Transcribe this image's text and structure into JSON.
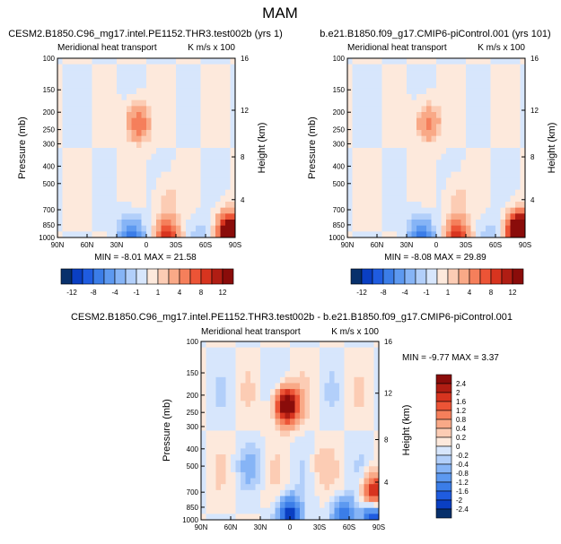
{
  "page_title": "MAM",
  "colors": {
    "negative": [
      "#08306b",
      "#0a3fc2",
      "#1f5ce0",
      "#3b7de8",
      "#5d99f0",
      "#86b4f6",
      "#b2cffa",
      "#d7e6fc"
    ],
    "positive": [
      "#fde9dc",
      "#fcccb4",
      "#f9a987",
      "#f57f5b",
      "#ec5436",
      "#d7341f",
      "#b01d13",
      "#8a0c0a"
    ],
    "neutral": "#ffffff"
  },
  "chart_data": [
    {
      "type": "heatmap",
      "title": "CESM2.B1850.C96_mg17.intel.PE1152.THR3.test002b (yrs 1)",
      "left_string": "Meridional heat transport",
      "right_string": "K m/s x 100",
      "ylabel": "Pressure (mb)",
      "y2label": "Height (km)",
      "xticks": [
        "90N",
        "60N",
        "30N",
        "0",
        "30S",
        "60S",
        "90S"
      ],
      "xlim": [
        90,
        -90
      ],
      "yticks": [
        100,
        150,
        200,
        250,
        300,
        400,
        500,
        700,
        850,
        1000
      ],
      "ylim": [
        100,
        1000
      ],
      "y_scale": "log",
      "y2ticks": [
        "16",
        "12",
        "8",
        "4"
      ],
      "min_max": "MIN = -8.01   MAX = 21.58",
      "features": [
        {
          "lat": 15,
          "p": 1000,
          "v": -8
        },
        {
          "lat": -22,
          "p": 1000,
          "v": 10
        },
        {
          "lat": 8,
          "p": 230,
          "v": 6
        },
        {
          "lat": -22,
          "p": 600,
          "v": 1.5
        },
        {
          "lat": -55,
          "p": 1000,
          "v": -2
        },
        {
          "lat": -85,
          "p": 950,
          "v": 21
        }
      ]
    },
    {
      "type": "heatmap",
      "title": "b.e21.B1850.f09_g17.CMIP6-piControl.001 (yrs 101)",
      "left_string": "Meridional heat transport",
      "right_string": "K m/s x 100",
      "ylabel": "Pressure (mb)",
      "y2label": "Height (km)",
      "xticks": [
        "90N",
        "60N",
        "30N",
        "0",
        "30S",
        "60S",
        "90S"
      ],
      "xlim": [
        90,
        -90
      ],
      "yticks": [
        100,
        150,
        200,
        250,
        300,
        400,
        500,
        700,
        850,
        1000
      ],
      "ylim": [
        100,
        1000
      ],
      "y_scale": "log",
      "y2ticks": [
        "16",
        "12",
        "8",
        "4"
      ],
      "min_max": "MIN = -8.08   MAX = 29.89",
      "features": [
        {
          "lat": 15,
          "p": 1000,
          "v": -8
        },
        {
          "lat": -22,
          "p": 1000,
          "v": 10
        },
        {
          "lat": 8,
          "p": 230,
          "v": 5
        },
        {
          "lat": -22,
          "p": 600,
          "v": 1.5
        },
        {
          "lat": -55,
          "p": 1000,
          "v": -2
        },
        {
          "lat": -85,
          "p": 950,
          "v": 29
        }
      ]
    },
    {
      "type": "heatmap",
      "title": "CESM2.B1850.C96_mg17.intel.PE1152.THR3.test002b - b.e21.B1850.f09_g17.CMIP6-piControl.001",
      "left_string": "Meridional heat transport",
      "right_string": "K m/s x 100",
      "ylabel": "Pressure (mb)",
      "y2label": "Height (km)",
      "xticks": [
        "90N",
        "60N",
        "30N",
        "0",
        "30S",
        "60S",
        "90S"
      ],
      "xlim": [
        90,
        -90
      ],
      "yticks": [
        100,
        150,
        200,
        250,
        300,
        400,
        500,
        700,
        850,
        1000
      ],
      "ylim": [
        100,
        1000
      ],
      "y_scale": "log",
      "y2ticks": [
        "16",
        "12",
        "8",
        "4"
      ],
      "min_max": "MIN = -9.77   MAX =  3.37",
      "features": [
        {
          "lat": 3,
          "p": 230,
          "v": 3.3
        },
        {
          "lat": 0,
          "p": 950,
          "v": -2.4
        },
        {
          "lat": -55,
          "p": 950,
          "v": -1.6
        },
        {
          "lat": -85,
          "p": 700,
          "v": 2.0
        },
        {
          "lat": -85,
          "p": 1000,
          "v": -2.4
        },
        {
          "lat": 40,
          "p": 500,
          "v": -0.4
        },
        {
          "lat": -30,
          "p": 500,
          "v": 0.3
        }
      ]
    }
  ],
  "colorbar_top": {
    "orientation": "horizontal",
    "labels": [
      "-12",
      "-8",
      "-4",
      "-1",
      "1",
      "4",
      "8",
      "12"
    ],
    "levels": [
      -14,
      -12,
      -10,
      -8,
      -6,
      -4,
      -2,
      -1,
      0,
      1,
      2,
      4,
      6,
      8,
      10,
      12,
      14
    ]
  },
  "colorbar_diff": {
    "orientation": "vertical",
    "labels": [
      "2.4",
      "2",
      "1.6",
      "1.2",
      "0.8",
      "0.4",
      "0.2",
      "0",
      "-0.2",
      "-0.4",
      "-0.8",
      "-1.2",
      "-1.6",
      "-2",
      "-2.4"
    ],
    "levels": [
      2.8,
      2.4,
      2,
      1.6,
      1.2,
      0.8,
      0.4,
      0.2,
      0,
      -0.2,
      -0.4,
      -0.8,
      -1.2,
      -1.6,
      -2,
      -2.4,
      -2.8
    ]
  }
}
